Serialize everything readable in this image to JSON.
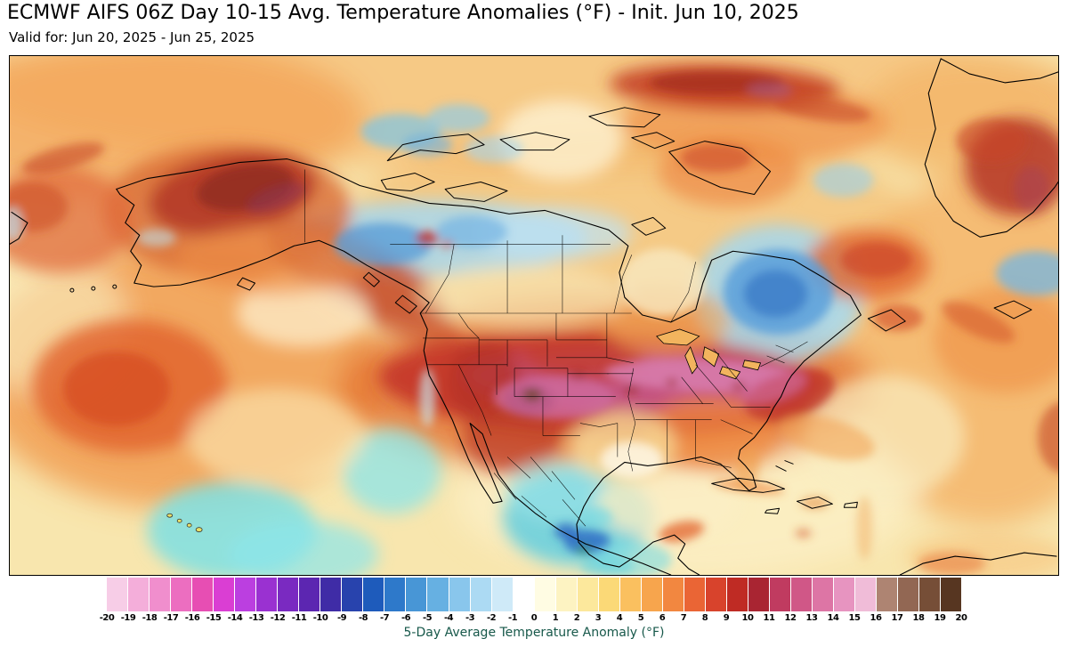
{
  "header": {
    "title": "ECMWF AIFS 06Z Day 10-15 Avg. Temperature Anomalies (°F) - Init. Jun 10, 2025",
    "subtitle": "Valid for: Jun 20, 2025 - Jun 25, 2025"
  },
  "colorbar": {
    "label": "5-Day Average Temperature Anomaly (°F)",
    "label_color": "#17584a",
    "min": -20,
    "max": 20,
    "ticks": [
      "-20",
      "-19",
      "-18",
      "-17",
      "-16",
      "-15",
      "-14",
      "-13",
      "-12",
      "-11",
      "-10",
      "-9",
      "-8",
      "-7",
      "-6",
      "-5",
      "-4",
      "-3",
      "-2",
      "-1",
      "0",
      "1",
      "2",
      "3",
      "4",
      "5",
      "6",
      "7",
      "8",
      "9",
      "10",
      "11",
      "12",
      "13",
      "14",
      "15",
      "16",
      "17",
      "18",
      "19",
      "20"
    ],
    "colors": [
      "#f7cde7",
      "#f4aeda",
      "#f08ecd",
      "#ec6ec0",
      "#e74eb3",
      "#da3ed3",
      "#bb3fe0",
      "#9a31d1",
      "#7a2ac1",
      "#5c26b1",
      "#3f2ca6",
      "#2843ad",
      "#1e5bbb",
      "#2e79ca",
      "#4896d6",
      "#66b0e2",
      "#89c6ec",
      "#acdaf3",
      "#cfeaf8",
      "#ffffff",
      "#fffce3",
      "#fdf3c2",
      "#fce89c",
      "#fbd977",
      "#fac05f",
      "#f7a54d",
      "#f28740",
      "#ea6535",
      "#d8432c",
      "#bf2b24",
      "#a92532",
      "#c03b60",
      "#d05787",
      "#dd75a5",
      "#e794c0",
      "#f0bcd8",
      "#ae8472",
      "#926753",
      "#764e37",
      "#573621"
    ]
  }
}
